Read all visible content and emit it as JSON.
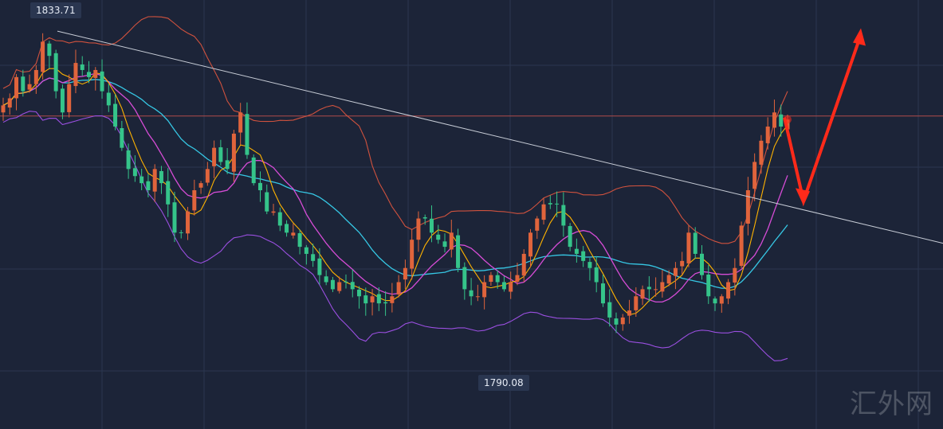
{
  "chart_data": {
    "type": "candlestick",
    "price_high_label": "1833.71",
    "price_low_label": "1790.08",
    "y_range": [
      1786,
      1838
    ],
    "reference_level": 1822.5,
    "grid": true,
    "colors": {
      "background": "#1c2438",
      "grid": "#2b3650",
      "up_candle": "#e0643c",
      "down_candle": "#35c48a",
      "bollinger_upper": "#d0523e",
      "bollinger_lower": "#9a4fe0",
      "ma_fast": "#ffb300",
      "ma_mid": "#d64cd6",
      "ma_slow": "#36c7e4",
      "trendline": "#c7ccd6",
      "reference_line": "#b04a4a",
      "forecast_arrow": "#ff2a1a"
    },
    "close_series": [
      1824,
      1825,
      1828,
      1826,
      1827,
      1829,
      1833,
      1831,
      1826,
      1823,
      1827,
      1830,
      1829,
      1828,
      1829,
      1826,
      1824,
      1821,
      1818,
      1815,
      1814,
      1813,
      1812,
      1815,
      1813,
      1810,
      1806,
      1806,
      1809,
      1812,
      1813,
      1815,
      1818,
      1816,
      1815,
      1820,
      1823,
      1817,
      1813,
      1812,
      1809,
      1809,
      1807,
      1806,
      1806,
      1804,
      1803,
      1802,
      1800,
      1799,
      1798,
      1799,
      1799,
      1798,
      1797,
      1796,
      1797,
      1796,
      1796,
      1797,
      1799,
      1801,
      1805,
      1808,
      1808,
      1806,
      1805,
      1804,
      1806,
      1801,
      1798,
      1797,
      1797,
      1799,
      1800,
      1799,
      1798,
      1799,
      1800,
      1803,
      1806,
      1808,
      1810,
      1810,
      1810,
      1807,
      1804,
      1803,
      1802,
      1801,
      1799,
      1796,
      1794,
      1793,
      1794,
      1795,
      1797,
      1798,
      1798,
      1798,
      1799,
      1800,
      1801,
      1802,
      1806,
      1803,
      1800,
      1797,
      1796,
      1797,
      1799,
      1801,
      1807,
      1812,
      1816,
      1819,
      1821,
      1823,
      1821,
      1822
    ],
    "forecast_path": [
      [
        0,
        1822.3
      ],
      [
        1,
        1810.5
      ],
      [
        2,
        1834.0
      ]
    ],
    "trendline_start": 1834.5,
    "trendline_end": 1804.5
  },
  "watermark": "汇外网"
}
